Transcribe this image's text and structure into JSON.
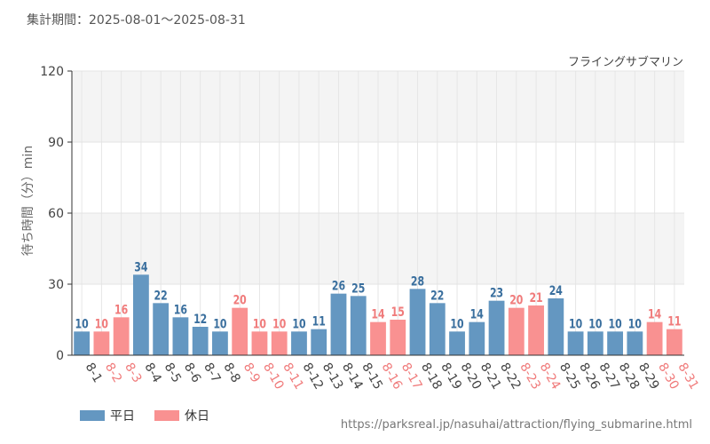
{
  "header": {
    "period_label": "集計期間：2025-08-01～2025-08-31"
  },
  "chart_data": {
    "type": "bar",
    "title": "フライングサブマリン",
    "ylabel": "待ち時間（分）min",
    "xlabel": "",
    "ylim": [
      0,
      120
    ],
    "yticks": [
      0,
      30,
      60,
      90,
      120
    ],
    "categories": [
      "8-1",
      "8-2",
      "8-3",
      "8-4",
      "8-5",
      "8-6",
      "8-7",
      "8-8",
      "8-9",
      "8-10",
      "8-11",
      "8-12",
      "8-13",
      "8-14",
      "8-15",
      "8-16",
      "8-17",
      "8-18",
      "8-19",
      "8-20",
      "8-21",
      "8-22",
      "8-23",
      "8-24",
      "8-25",
      "8-26",
      "8-27",
      "8-28",
      "8-29",
      "8-30",
      "8-31"
    ],
    "values": [
      10,
      10,
      16,
      34,
      22,
      16,
      12,
      10,
      20,
      10,
      10,
      10,
      11,
      26,
      25,
      14,
      15,
      28,
      22,
      10,
      14,
      23,
      20,
      21,
      24,
      10,
      10,
      10,
      10,
      14,
      11
    ],
    "day_type": [
      "weekday",
      "holiday",
      "holiday",
      "weekday",
      "weekday",
      "weekday",
      "weekday",
      "weekday",
      "holiday",
      "holiday",
      "holiday",
      "weekday",
      "weekday",
      "weekday",
      "weekday",
      "holiday",
      "holiday",
      "weekday",
      "weekday",
      "weekday",
      "weekday",
      "weekday",
      "holiday",
      "holiday",
      "weekday",
      "weekday",
      "weekday",
      "weekday",
      "weekday",
      "holiday",
      "holiday"
    ],
    "series": [
      {
        "key": "weekday",
        "name": "平日",
        "color": "#6497c1",
        "label_color": "#3a6f9e",
        "tick_color": "#444444"
      },
      {
        "key": "holiday",
        "name": "休日",
        "color": "#f99191",
        "label_color": "#f07b7b",
        "tick_color": "#f07b7b"
      }
    ],
    "legend_position": "bottom-left",
    "grid": true
  },
  "footer": {
    "source_url": "https://parksreal.jp/nasuhai/attraction/flying_submarine.html"
  }
}
